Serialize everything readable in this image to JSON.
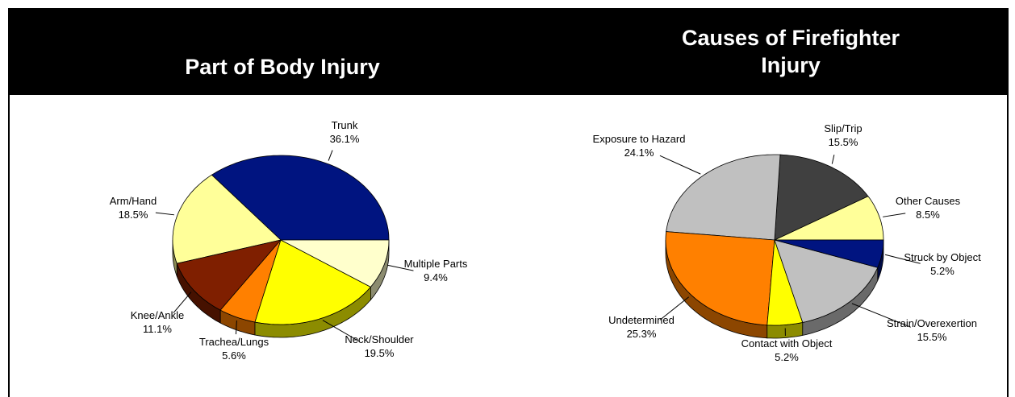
{
  "chart_data": [
    {
      "type": "pie",
      "title": "Part of Body Injury",
      "categories": [
        "Trunk",
        "Arm/Hand",
        "Knee/Ankle",
        "Trachea/Lungs",
        "Neck/Shoulder",
        "Multiple Parts"
      ],
      "values": [
        36.1,
        18.5,
        11.1,
        5.6,
        19.5,
        9.4
      ],
      "value_labels": [
        "36.1%",
        "18.5%",
        "11.1%",
        "5.6%",
        "19.5%",
        "9.4%"
      ],
      "colors": [
        "#001480",
        "#ffff99",
        "#7f1f00",
        "#ff8000",
        "#ffff00",
        "#ffffcc"
      ]
    },
    {
      "type": "pie",
      "title": "Causes of Firefighter Injury",
      "categories": [
        "Other Causes",
        "Slip/Trip",
        "Exposure to Hazard",
        "Undetermined",
        "Contact with Object",
        "Strain/Overexertion",
        "Struck by Object"
      ],
      "values": [
        8.5,
        15.5,
        24.1,
        25.3,
        5.2,
        15.5,
        5.2
      ],
      "value_labels": [
        "8.5%",
        "15.5%",
        "24.1%",
        "25.3%",
        "5.2%",
        "15.5%",
        "5.2%"
      ],
      "colors": [
        "#ffff99",
        "#404040",
        "#c0c0c0",
        "#ff8000",
        "#ffff00",
        "#c0c0c0",
        "#001480"
      ]
    }
  ]
}
